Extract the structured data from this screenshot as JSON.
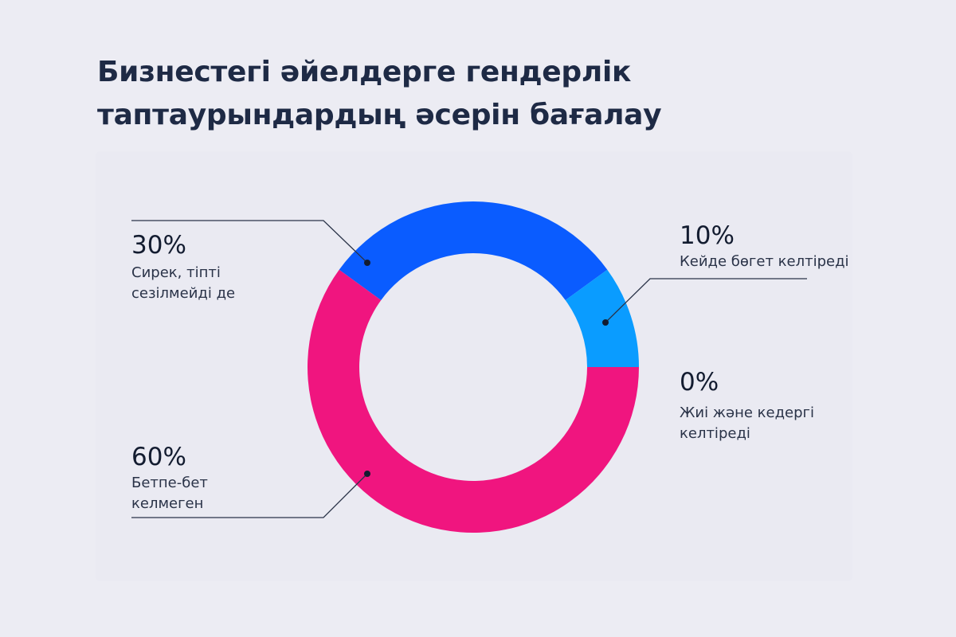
{
  "title": "Бизнестегі әйелдерге гендерлік таптаурындардың әсерін бағалау",
  "chart_data": {
    "type": "pie",
    "donut": true,
    "title": "Бизнестегі әйелдерге гендерлік таптаурындардың әсерін бағалау",
    "slices": [
      {
        "label": "Сирек, тіпті сезілмейді де",
        "value": 30,
        "value_label": "30%",
        "color": "#0a5cff"
      },
      {
        "label": "Кейде бөгет келтіреді",
        "value": 10,
        "value_label": "10%",
        "color": "#0a9cff"
      },
      {
        "label": "Жиі және кедергі келтіреді",
        "value": 0,
        "value_label": "0%",
        "color": "#f0157f"
      },
      {
        "label": "Бетпе-бет келмеген",
        "value": 60,
        "value_label": "60%",
        "color": "#f0157f"
      }
    ]
  }
}
